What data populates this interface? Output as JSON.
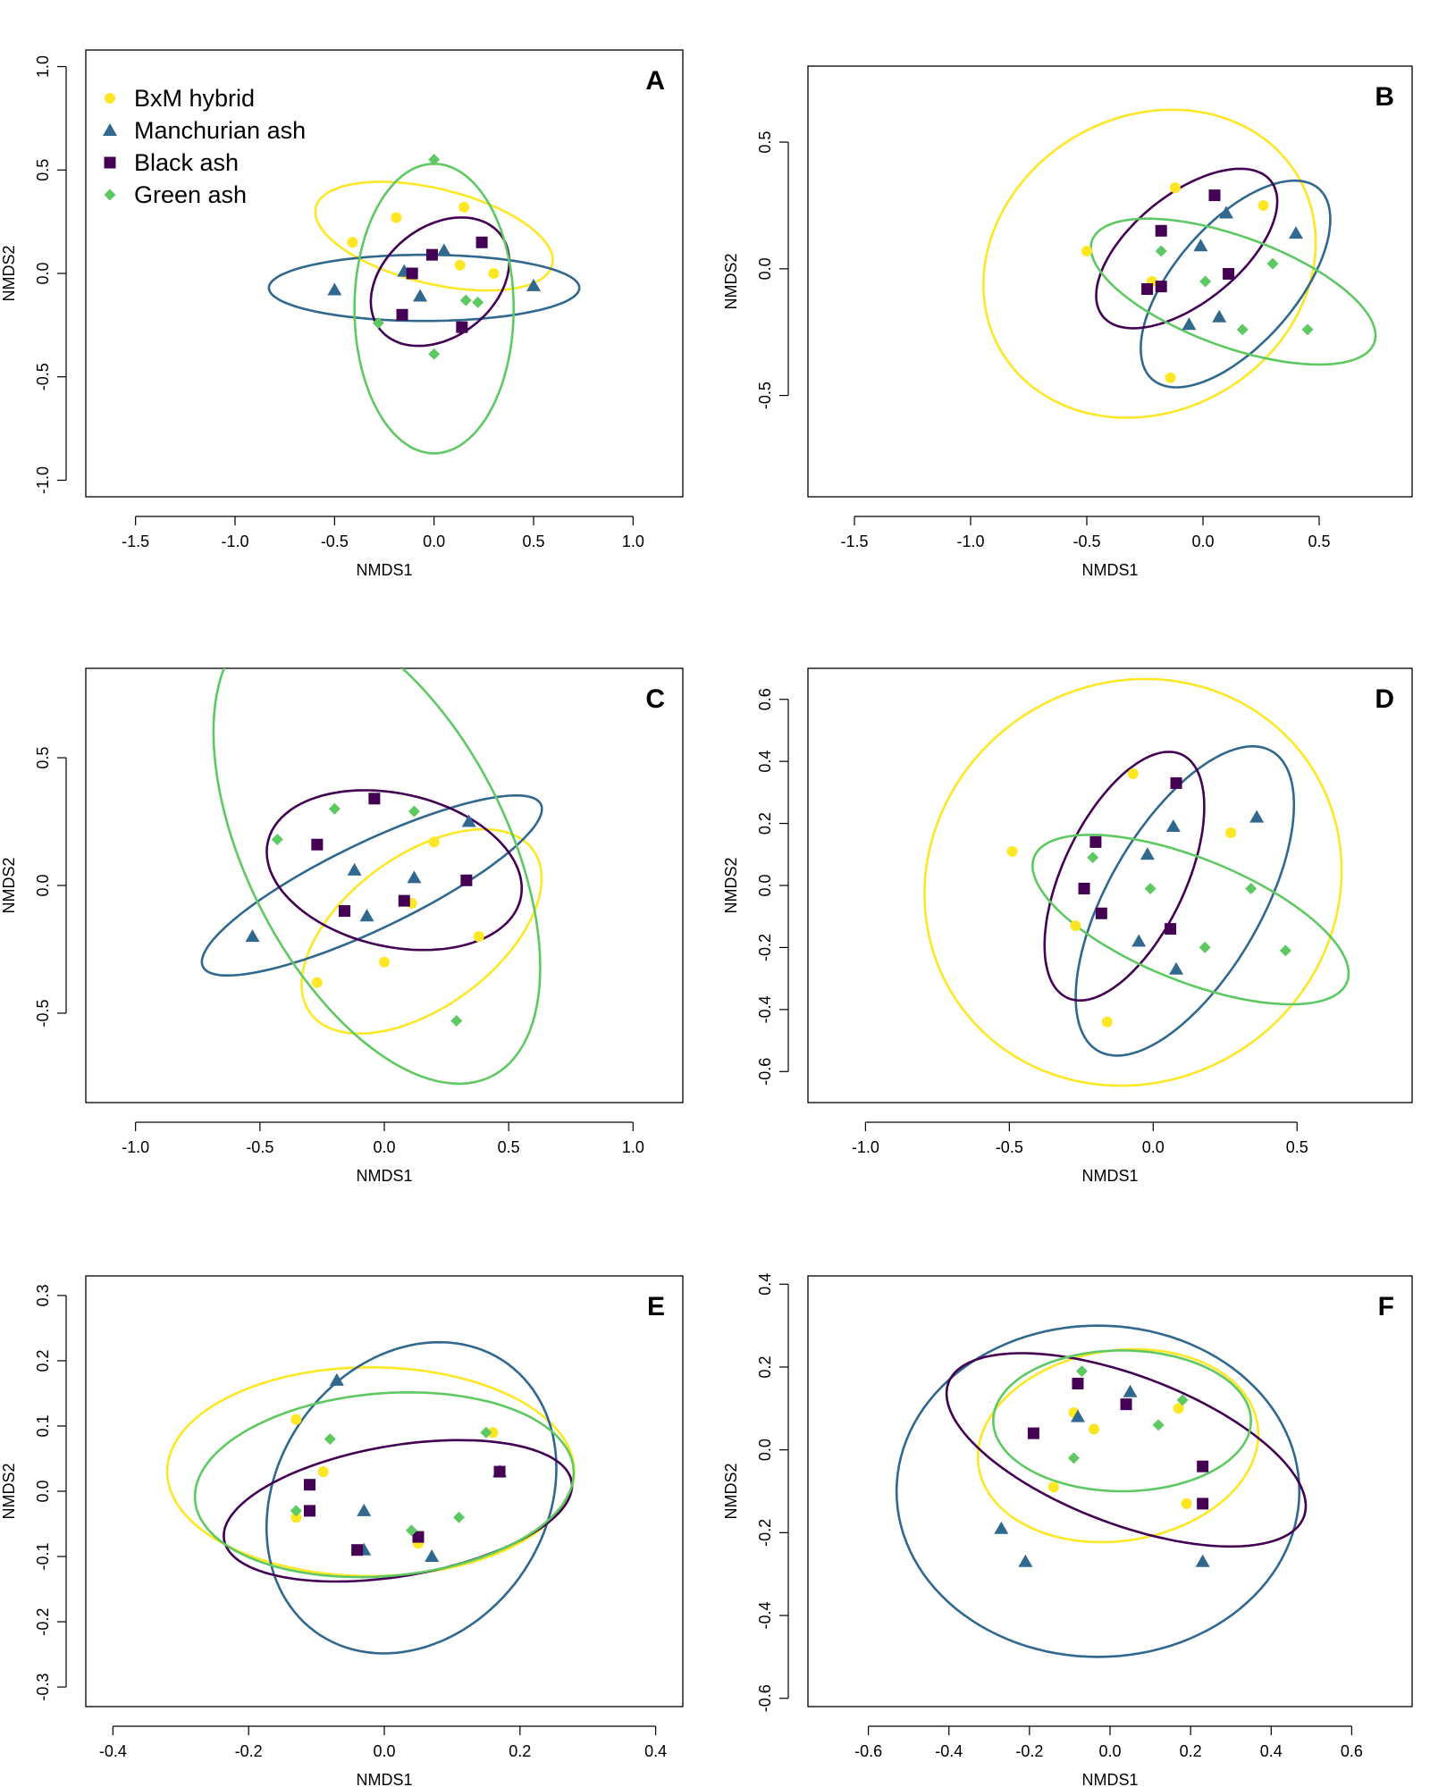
{
  "legend": [
    {
      "label": "BxM hybrid",
      "color": "#FDE725",
      "marker": "circle"
    },
    {
      "label": "Manchurian ash",
      "color": "#31688E",
      "marker": "triangle"
    },
    {
      "label": "Black ash",
      "color": "#440154",
      "marker": "square"
    },
    {
      "label": "Green ash",
      "color": "#5EC962",
      "marker": "diamond"
    }
  ],
  "chart_data": [
    {
      "type": "scatter",
      "panel": "A",
      "xlabel": "NMDS1",
      "ylabel": "NMDS2",
      "xlim": [
        -1.75,
        1.25
      ],
      "ylim": [
        -1.08,
        1.08
      ],
      "xticks": [
        -1.5,
        -1.0,
        -0.5,
        0.0,
        0.5,
        1.0
      ],
      "yticks": [
        -1.0,
        -0.5,
        0.0,
        0.5,
        1.0
      ],
      "legend_position": "top-left",
      "series": [
        {
          "name": "BxM hybrid",
          "points": [
            [
              -0.41,
              0.15
            ],
            [
              -0.19,
              0.27
            ],
            [
              0.15,
              0.32
            ],
            [
              0.13,
              0.04
            ],
            [
              0.3,
              0.0
            ]
          ],
          "ellipse": {
            "cx": 0.0,
            "cy": 0.18,
            "rx": 0.61,
            "ry": 0.23,
            "angle": -13
          }
        },
        {
          "name": "Manchurian ash",
          "points": [
            [
              -0.5,
              -0.08
            ],
            [
              -0.15,
              0.01
            ],
            [
              0.05,
              0.11
            ],
            [
              -0.07,
              -0.11
            ],
            [
              0.5,
              -0.06
            ]
          ],
          "ellipse": {
            "cx": -0.05,
            "cy": -0.07,
            "rx": 0.78,
            "ry": 0.16,
            "angle": 0
          }
        },
        {
          "name": "Black ash",
          "points": [
            [
              -0.11,
              0.0
            ],
            [
              -0.01,
              0.09
            ],
            [
              0.24,
              0.15
            ],
            [
              -0.16,
              -0.2
            ],
            [
              0.14,
              -0.26
            ]
          ],
          "ellipse": {
            "cx": 0.03,
            "cy": -0.04,
            "rx": 0.38,
            "ry": 0.27,
            "angle": 35
          }
        },
        {
          "name": "Green ash",
          "points": [
            [
              0.0,
              0.55
            ],
            [
              -0.28,
              -0.24
            ],
            [
              0.16,
              -0.13
            ],
            [
              0.22,
              -0.14
            ],
            [
              0.0,
              -0.39
            ]
          ],
          "ellipse": {
            "cx": 0.0,
            "cy": -0.17,
            "rx": 0.4,
            "ry": 0.7,
            "angle": 0
          }
        }
      ]
    },
    {
      "type": "scatter",
      "panel": "B",
      "xlabel": "NMDS1",
      "ylabel": "NMDS2",
      "xlim": [
        -1.7,
        0.9
      ],
      "ylim": [
        -0.9,
        0.8
      ],
      "xticks": [
        -1.5,
        -1.0,
        -0.5,
        0.0,
        0.5
      ],
      "yticks": [
        -0.5,
        0.0,
        0.5
      ],
      "series": [
        {
          "name": "BxM hybrid",
          "points": [
            [
              -0.5,
              0.07
            ],
            [
              -0.12,
              0.32
            ],
            [
              0.26,
              0.25
            ],
            [
              -0.22,
              -0.05
            ],
            [
              -0.14,
              -0.43
            ]
          ],
          "ellipse": {
            "cx": -0.23,
            "cy": 0.02,
            "rx": 0.73,
            "ry": 0.59,
            "angle": 20
          }
        },
        {
          "name": "Manchurian ash",
          "points": [
            [
              0.1,
              0.22
            ],
            [
              -0.01,
              0.09
            ],
            [
              0.4,
              0.14
            ],
            [
              -0.06,
              -0.22
            ],
            [
              0.07,
              -0.19
            ]
          ],
          "ellipse": {
            "cx": 0.14,
            "cy": -0.06,
            "rx": 0.52,
            "ry": 0.25,
            "angle": 45
          }
        },
        {
          "name": "Black ash",
          "points": [
            [
              0.05,
              0.29
            ],
            [
              -0.18,
              0.15
            ],
            [
              -0.24,
              -0.08
            ],
            [
              -0.18,
              -0.07
            ],
            [
              0.11,
              -0.02
            ]
          ],
          "ellipse": {
            "cx": -0.07,
            "cy": 0.08,
            "rx": 0.45,
            "ry": 0.22,
            "angle": 35
          }
        },
        {
          "name": "Green ash",
          "points": [
            [
              -0.18,
              0.07
            ],
            [
              0.01,
              -0.05
            ],
            [
              0.3,
              0.02
            ],
            [
              0.17,
              -0.24
            ],
            [
              0.45,
              -0.24
            ]
          ],
          "ellipse": {
            "cx": 0.13,
            "cy": -0.09,
            "rx": 0.64,
            "ry": 0.22,
            "angle": -18
          }
        }
      ]
    },
    {
      "type": "scatter",
      "panel": "C",
      "xlabel": "NMDS1",
      "ylabel": "NMDS2",
      "xlim": [
        -1.2,
        1.2
      ],
      "ylim": [
        -0.85,
        0.85
      ],
      "xticks": [
        -1.0,
        -0.5,
        0.0,
        0.5,
        1.0
      ],
      "yticks": [
        -0.5,
        0.0,
        0.5
      ],
      "series": [
        {
          "name": "BxM hybrid",
          "points": [
            [
              0.2,
              0.17
            ],
            [
              0.11,
              -0.07
            ],
            [
              0.38,
              -0.2
            ],
            [
              -0.27,
              -0.38
            ],
            [
              0.0,
              -0.3
            ]
          ],
          "ellipse": {
            "cx": 0.15,
            "cy": -0.18,
            "rx": 0.55,
            "ry": 0.3,
            "angle": 35
          }
        },
        {
          "name": "Manchurian ash",
          "points": [
            [
              -0.53,
              -0.2
            ],
            [
              -0.12,
              0.06
            ],
            [
              -0.07,
              -0.12
            ],
            [
              0.12,
              0.03
            ],
            [
              0.34,
              0.25
            ]
          ],
          "ellipse": {
            "cx": -0.05,
            "cy": 0.0,
            "rx": 0.75,
            "ry": 0.17,
            "angle": 25
          }
        },
        {
          "name": "Black ash",
          "points": [
            [
              -0.27,
              0.16
            ],
            [
              -0.04,
              0.34
            ],
            [
              0.33,
              0.02
            ],
            [
              0.08,
              -0.06
            ],
            [
              -0.16,
              -0.1
            ]
          ],
          "ellipse": {
            "cx": 0.04,
            "cy": 0.06,
            "rx": 0.52,
            "ry": 0.3,
            "angle": -12
          }
        },
        {
          "name": "Green ash",
          "points": [
            [
              -0.43,
              0.18
            ],
            [
              -0.2,
              0.3
            ],
            [
              0.12,
              0.29
            ],
            [
              0.29,
              -0.53
            ]
          ],
          "ellipse": {
            "cx": -0.03,
            "cy": 0.14,
            "rx": 1.0,
            "ry": 0.52,
            "angle": -62
          }
        }
      ]
    },
    {
      "type": "scatter",
      "panel": "D",
      "xlabel": "NMDS1",
      "ylabel": "NMDS2",
      "xlim": [
        -1.2,
        0.9
      ],
      "ylim": [
        -0.7,
        0.7
      ],
      "xticks": [
        -1.0,
        -0.5,
        0.0,
        0.5
      ],
      "yticks": [
        -0.6,
        -0.4,
        -0.2,
        0.0,
        0.2,
        0.4,
        0.6
      ],
      "series": [
        {
          "name": "BxM hybrid",
          "points": [
            [
              -0.49,
              0.11
            ],
            [
              -0.07,
              0.36
            ],
            [
              0.27,
              0.17
            ],
            [
              -0.27,
              -0.13
            ],
            [
              -0.16,
              -0.44
            ]
          ],
          "ellipse": {
            "cx": -0.07,
            "cy": 0.01,
            "rx": 0.73,
            "ry": 0.65,
            "angle": 15
          }
        },
        {
          "name": "Manchurian ash",
          "points": [
            [
              0.07,
              0.19
            ],
            [
              -0.02,
              0.1
            ],
            [
              0.36,
              0.22
            ],
            [
              -0.05,
              -0.18
            ],
            [
              0.08,
              -0.27
            ]
          ],
          "ellipse": {
            "cx": 0.11,
            "cy": -0.05,
            "rx": 0.57,
            "ry": 0.26,
            "angle": 57
          }
        },
        {
          "name": "Black ash",
          "points": [
            [
              0.08,
              0.33
            ],
            [
              -0.2,
              0.14
            ],
            [
              -0.24,
              -0.01
            ],
            [
              -0.18,
              -0.09
            ],
            [
              0.06,
              -0.14
            ]
          ],
          "ellipse": {
            "cx": -0.1,
            "cy": 0.03,
            "rx": 0.44,
            "ry": 0.21,
            "angle": 62
          }
        },
        {
          "name": "Green ash",
          "points": [
            [
              -0.21,
              0.09
            ],
            [
              -0.01,
              -0.01
            ],
            [
              0.34,
              -0.01
            ],
            [
              0.18,
              -0.2
            ],
            [
              0.46,
              -0.21
            ]
          ],
          "ellipse": {
            "cx": 0.13,
            "cy": -0.11,
            "rx": 0.58,
            "ry": 0.2,
            "angle": -20
          }
        }
      ]
    },
    {
      "type": "scatter",
      "panel": "E",
      "xlabel": "NMDS1",
      "ylabel": "NMDS2",
      "xlim": [
        -0.44,
        0.44
      ],
      "ylim": [
        -0.33,
        0.33
      ],
      "xticks": [
        -0.4,
        -0.2,
        0.0,
        0.2,
        0.4
      ],
      "yticks": [
        -0.3,
        -0.2,
        -0.1,
        0.0,
        0.1,
        0.2,
        0.3
      ],
      "series": [
        {
          "name": "BxM hybrid",
          "points": [
            [
              -0.13,
              0.11
            ],
            [
              -0.09,
              0.03
            ],
            [
              -0.13,
              -0.04
            ],
            [
              0.16,
              0.09
            ],
            [
              0.05,
              -0.08
            ]
          ],
          "ellipse": {
            "cx": -0.02,
            "cy": 0.03,
            "rx": 0.3,
            "ry": 0.16,
            "angle": 0
          }
        },
        {
          "name": "Manchurian ash",
          "points": [
            [
              -0.07,
              0.17
            ],
            [
              -0.03,
              -0.03
            ],
            [
              0.17,
              0.03
            ],
            [
              -0.03,
              -0.09
            ],
            [
              0.07,
              -0.1
            ]
          ],
          "ellipse": {
            "cx": 0.04,
            "cy": -0.01,
            "rx": 0.25,
            "ry": 0.2,
            "angle": 60
          }
        },
        {
          "name": "Black ash",
          "points": [
            [
              -0.11,
              0.01
            ],
            [
              -0.11,
              -0.03
            ],
            [
              -0.04,
              -0.09
            ],
            [
              0.05,
              -0.07
            ],
            [
              0.17,
              0.03
            ]
          ],
          "ellipse": {
            "cx": 0.02,
            "cy": -0.03,
            "rx": 0.26,
            "ry": 0.1,
            "angle": 10
          }
        },
        {
          "name": "Green ash",
          "points": [
            [
              -0.08,
              0.08
            ],
            [
              -0.13,
              -0.03
            ],
            [
              0.15,
              0.09
            ],
            [
              0.04,
              -0.06
            ],
            [
              0.11,
              -0.04
            ]
          ],
          "ellipse": {
            "cx": 0.0,
            "cy": 0.01,
            "rx": 0.28,
            "ry": 0.14,
            "angle": 5
          }
        }
      ]
    },
    {
      "type": "scatter",
      "panel": "F",
      "xlabel": "NMDS1",
      "ylabel": "NMDS2",
      "xlim": [
        -0.75,
        0.75
      ],
      "ylim": [
        -0.62,
        0.42
      ],
      "xticks": [
        -0.6,
        -0.4,
        -0.2,
        0.0,
        0.2,
        0.4,
        0.6
      ],
      "yticks": [
        -0.6,
        -0.4,
        -0.2,
        0.0,
        0.2,
        0.4
      ],
      "series": [
        {
          "name": "BxM hybrid",
          "points": [
            [
              -0.09,
              0.09
            ],
            [
              -0.04,
              0.05
            ],
            [
              0.17,
              0.1
            ],
            [
              -0.14,
              -0.09
            ],
            [
              0.19,
              -0.13
            ]
          ],
          "ellipse": {
            "cx": 0.02,
            "cy": 0.01,
            "rx": 0.35,
            "ry": 0.23,
            "angle": 8
          }
        },
        {
          "name": "Manchurian ash",
          "points": [
            [
              -0.08,
              0.08
            ],
            [
              0.05,
              0.14
            ],
            [
              -0.27,
              -0.19
            ],
            [
              -0.21,
              -0.27
            ],
            [
              0.23,
              -0.27
            ]
          ],
          "ellipse": {
            "cx": -0.03,
            "cy": -0.1,
            "rx": 0.5,
            "ry": 0.4,
            "angle": 0
          }
        },
        {
          "name": "Black ash",
          "points": [
            [
              -0.08,
              0.16
            ],
            [
              0.04,
              0.11
            ],
            [
              -0.19,
              0.04
            ],
            [
              0.23,
              -0.04
            ],
            [
              0.23,
              -0.13
            ]
          ],
          "ellipse": {
            "cx": 0.04,
            "cy": 0.0,
            "rx": 0.47,
            "ry": 0.18,
            "angle": -20
          }
        },
        {
          "name": "Green ash",
          "points": [
            [
              -0.07,
              0.19
            ],
            [
              0.18,
              0.12
            ],
            [
              0.12,
              0.06
            ],
            [
              -0.09,
              -0.02
            ]
          ],
          "ellipse": {
            "cx": 0.03,
            "cy": 0.07,
            "rx": 0.32,
            "ry": 0.17,
            "angle": 0
          }
        }
      ]
    }
  ]
}
